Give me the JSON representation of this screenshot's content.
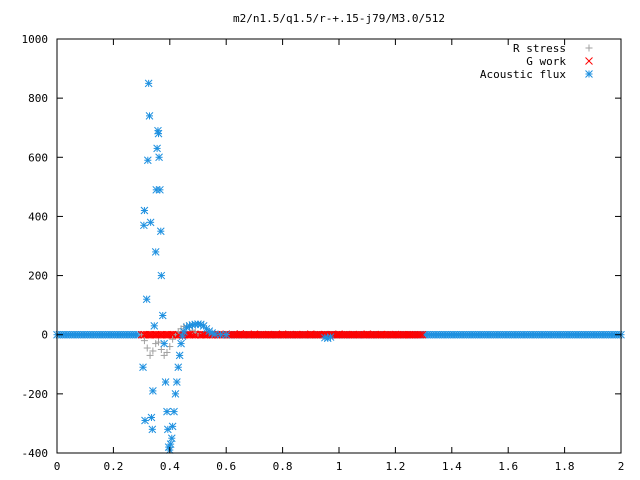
{
  "chart_data": {
    "type": "scatter",
    "title": "m2/n1.5/q1.5/r-+.15-j79/M3.0/512",
    "xlabel": "",
    "ylabel": "",
    "xlim": [
      0,
      2
    ],
    "ylim": [
      -400,
      1000
    ],
    "xticks": [
      0,
      0.2,
      0.4,
      0.6,
      0.8,
      1,
      1.2,
      1.4,
      1.6,
      1.8,
      2
    ],
    "xtick_labels": [
      "0",
      "0.2",
      "0.4",
      "0.6",
      "0.8",
      "1",
      "1.2",
      "1.4",
      "1.6",
      "1.8",
      "2"
    ],
    "yticks": [
      -400,
      -200,
      0,
      200,
      400,
      600,
      800,
      1000
    ],
    "ytick_labels": [
      "-400",
      "-200",
      "0",
      "200",
      "400",
      "600",
      "800",
      "1000"
    ],
    "grid": false,
    "legend_position": "top-right",
    "series": [
      {
        "name": "R stress",
        "marker": "plus",
        "color": "#a0a0a0",
        "points": [
          [
            0.3,
            0
          ],
          [
            0.31,
            -20
          ],
          [
            0.32,
            -45
          ],
          [
            0.33,
            -70
          ],
          [
            0.34,
            -55
          ],
          [
            0.35,
            -30
          ],
          [
            0.36,
            -25
          ],
          [
            0.37,
            -50
          ],
          [
            0.38,
            -70
          ],
          [
            0.39,
            -60
          ],
          [
            0.4,
            -40
          ],
          [
            0.41,
            -15
          ],
          [
            0.42,
            0
          ],
          [
            0.43,
            10
          ],
          [
            0.44,
            20
          ],
          [
            0.45,
            28
          ],
          [
            0.46,
            30
          ],
          [
            0.47,
            25
          ],
          [
            0.48,
            15
          ],
          [
            0.49,
            8
          ],
          [
            0.5,
            4
          ],
          [
            0.55,
            2
          ],
          [
            0.6,
            1
          ]
        ]
      },
      {
        "name": "G work",
        "marker": "cross",
        "color": "#ff0000",
        "points": [
          [
            0.31,
            0
          ],
          [
            0.33,
            0
          ],
          [
            0.35,
            0
          ],
          [
            0.37,
            0
          ],
          [
            0.39,
            0
          ],
          [
            0.41,
            0
          ],
          [
            0.43,
            0
          ],
          [
            0.45,
            0
          ],
          [
            0.47,
            0
          ],
          [
            0.49,
            0
          ],
          [
            0.51,
            0
          ],
          [
            0.53,
            0
          ],
          [
            0.55,
            0
          ],
          [
            0.57,
            0
          ],
          [
            0.6,
            2
          ],
          [
            0.65,
            3
          ],
          [
            0.7,
            2
          ],
          [
            0.75,
            1
          ],
          [
            0.8,
            2
          ],
          [
            0.85,
            1
          ],
          [
            0.9,
            2
          ],
          [
            0.95,
            1
          ],
          [
            1.0,
            2
          ],
          [
            1.05,
            1
          ],
          [
            1.1,
            2
          ],
          [
            1.15,
            1
          ],
          [
            1.2,
            1
          ],
          [
            1.25,
            0
          ]
        ]
      },
      {
        "name": "Acoustic flux",
        "marker": "star",
        "color": "#1e90e0",
        "points": [
          [
            0.305,
            -110
          ],
          [
            0.308,
            370
          ],
          [
            0.31,
            420
          ],
          [
            0.312,
            -290
          ],
          [
            0.318,
            120
          ],
          [
            0.322,
            590
          ],
          [
            0.325,
            850
          ],
          [
            0.328,
            740
          ],
          [
            0.332,
            380
          ],
          [
            0.335,
            -280
          ],
          [
            0.338,
            -320
          ],
          [
            0.34,
            -190
          ],
          [
            0.345,
            30
          ],
          [
            0.35,
            280
          ],
          [
            0.352,
            490
          ],
          [
            0.355,
            630
          ],
          [
            0.358,
            690
          ],
          [
            0.36,
            680
          ],
          [
            0.362,
            600
          ],
          [
            0.365,
            490
          ],
          [
            0.368,
            350
          ],
          [
            0.37,
            200
          ],
          [
            0.375,
            65
          ],
          [
            0.38,
            -30
          ],
          [
            0.385,
            -160
          ],
          [
            0.39,
            -260
          ],
          [
            0.393,
            -320
          ],
          [
            0.396,
            -380
          ],
          [
            0.4,
            -390
          ],
          [
            0.403,
            -370
          ],
          [
            0.407,
            -350
          ],
          [
            0.41,
            -310
          ],
          [
            0.415,
            -260
          ],
          [
            0.42,
            -200
          ],
          [
            0.425,
            -160
          ],
          [
            0.43,
            -110
          ],
          [
            0.435,
            -70
          ],
          [
            0.44,
            -30
          ],
          [
            0.445,
            -5
          ],
          [
            0.45,
            10
          ],
          [
            0.46,
            25
          ],
          [
            0.47,
            30
          ],
          [
            0.48,
            33
          ],
          [
            0.49,
            35
          ],
          [
            0.5,
            36
          ],
          [
            0.51,
            35
          ],
          [
            0.52,
            30
          ],
          [
            0.53,
            20
          ],
          [
            0.54,
            12
          ],
          [
            0.55,
            6
          ],
          [
            0.56,
            2
          ],
          [
            0.58,
            0
          ],
          [
            0.6,
            0
          ],
          [
            0.95,
            -10
          ],
          [
            0.96,
            -12
          ],
          [
            0.97,
            -8
          ]
        ]
      }
    ]
  }
}
